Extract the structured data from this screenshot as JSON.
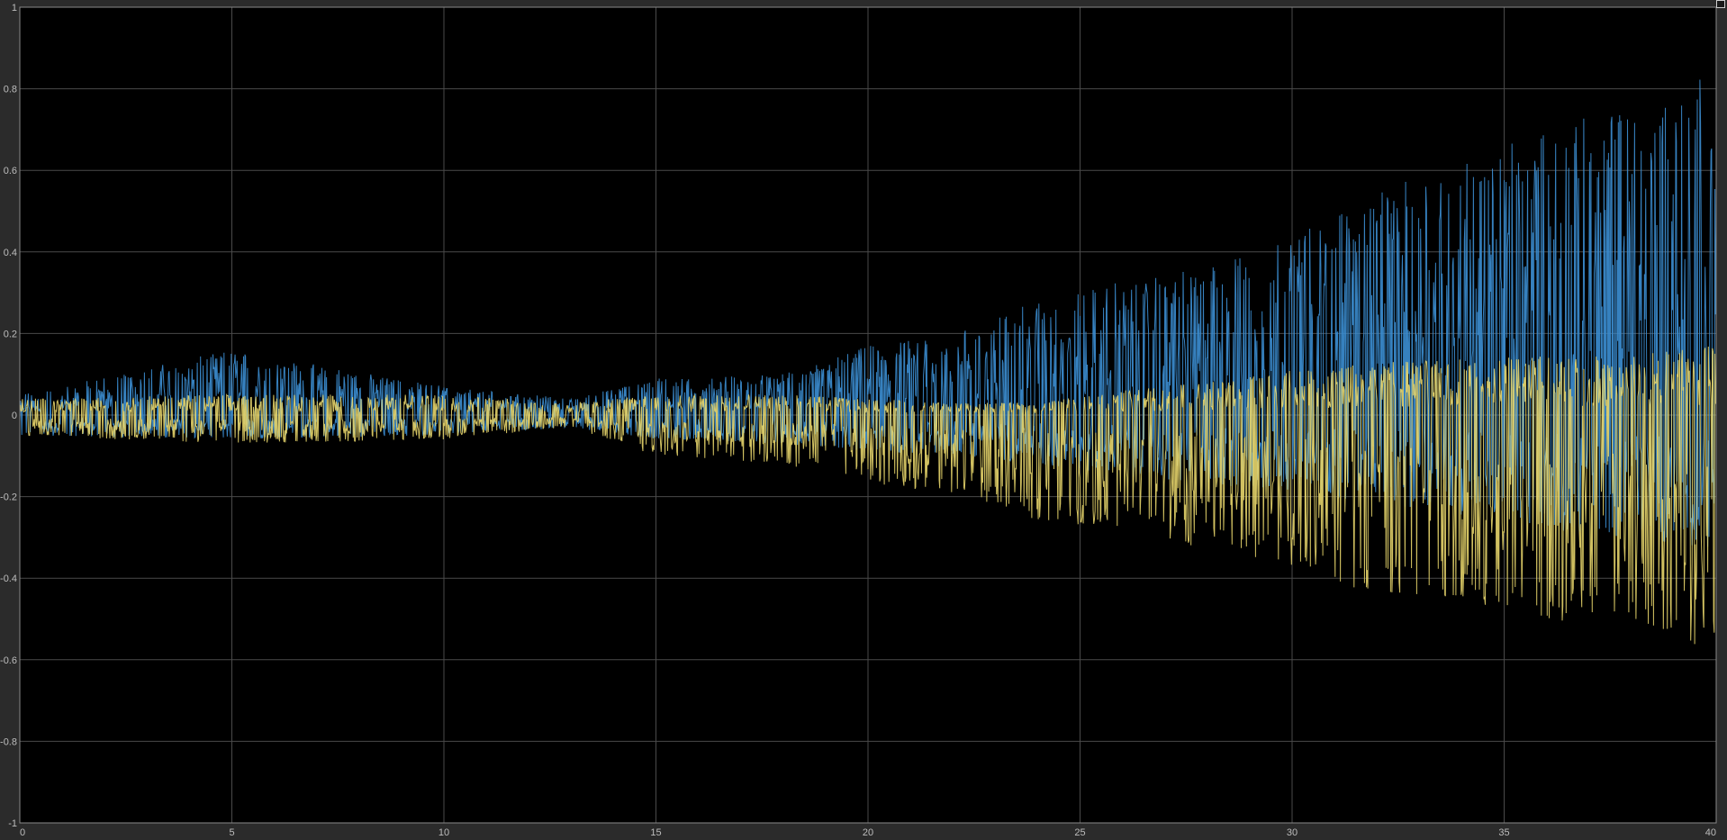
{
  "chart_data": {
    "type": "line",
    "title": "",
    "xlabel": "",
    "ylabel": "",
    "xlim": [
      0,
      40
    ],
    "ylim": [
      -1,
      1
    ],
    "grid": true,
    "legend": "none",
    "x_ticks": [
      "0",
      "5",
      "10",
      "15",
      "20",
      "25",
      "30",
      "35",
      "40"
    ],
    "y_ticks": [
      "1",
      "0.8",
      "0.6",
      "0.4",
      "0.2",
      "0",
      "-0.2",
      "-0.4",
      "-0.6",
      "-0.8",
      "-1"
    ],
    "series": [
      {
        "color": "#3c8fd4",
        "envelope": {
          "x": [
            0,
            5,
            10,
            13,
            15,
            18,
            20,
            22,
            24,
            26,
            28,
            30,
            32,
            34,
            36,
            38,
            40
          ],
          "max": [
            0.05,
            0.16,
            0.07,
            0.04,
            0.09,
            0.1,
            0.17,
            0.2,
            0.28,
            0.33,
            0.36,
            0.44,
            0.55,
            0.62,
            0.7,
            0.78,
            0.86
          ],
          "min": [
            -0.05,
            -0.06,
            -0.05,
            -0.03,
            -0.06,
            -0.07,
            -0.09,
            -0.1,
            -0.12,
            -0.15,
            -0.17,
            -0.19,
            -0.22,
            -0.25,
            -0.28,
            -0.3,
            -0.33
          ]
        }
      },
      {
        "color": "#e8d66b",
        "envelope": {
          "x": [
            0,
            5,
            10,
            13,
            15,
            18,
            20,
            22,
            24,
            26,
            28,
            30,
            32,
            34,
            36,
            38,
            40
          ],
          "max": [
            0.04,
            0.05,
            0.05,
            0.03,
            0.05,
            0.05,
            0.04,
            0.03,
            0.03,
            0.06,
            0.08,
            0.11,
            0.13,
            0.14,
            0.15,
            0.15,
            0.17
          ],
          "min": [
            -0.05,
            -0.07,
            -0.06,
            -0.03,
            -0.1,
            -0.12,
            -0.17,
            -0.19,
            -0.26,
            -0.28,
            -0.33,
            -0.38,
            -0.44,
            -0.46,
            -0.5,
            -0.53,
            -0.58
          ]
        }
      }
    ]
  }
}
